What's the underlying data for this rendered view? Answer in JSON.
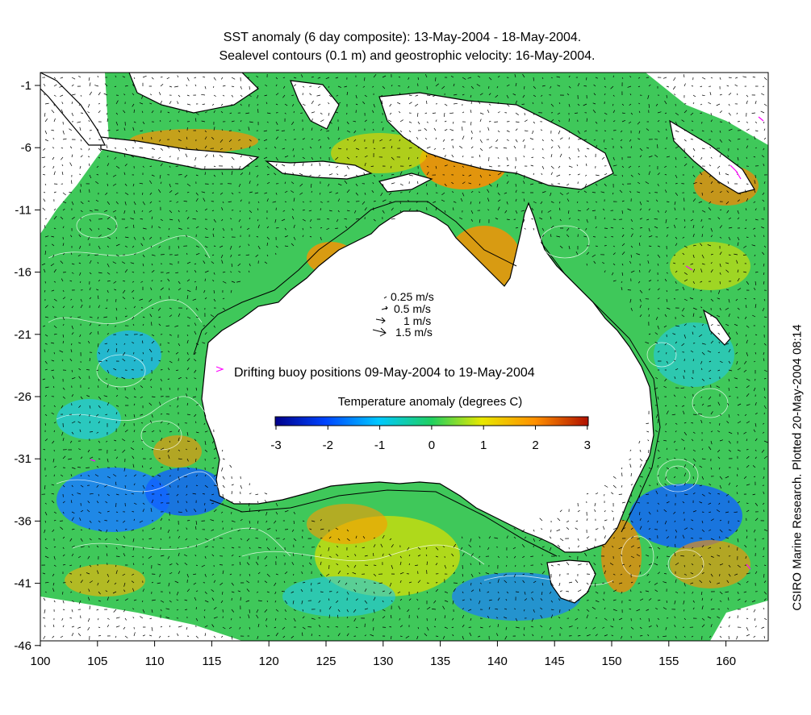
{
  "title_line1": "SST anomaly (6 day composite): 13-May-2004 - 18-May-2004.",
  "title_line2": "Sealevel contours (0.1 m) and geostrophic velocity: 16-May-2004.",
  "side_label": "CSIRO Marine Research. Plotted 20-May-2004 08:14",
  "velocity_legend": [
    "0.25 m/s",
    "0.5 m/s",
    "1 m/s",
    "1.5 m/s"
  ],
  "buoy_legend": "Drifting buoy positions 09-May-2004 to 19-May-2004",
  "colorbar": {
    "title": "Temperature anomaly (degrees C)",
    "ticks": [
      "-3",
      "-2",
      "-1",
      "0",
      "1",
      "2",
      "3"
    ],
    "colors": [
      "#00008b",
      "#0044ff",
      "#00c8ff",
      "#20d060",
      "#e8e800",
      "#ff9000",
      "#b01000"
    ]
  },
  "axes": {
    "x_ticks": [
      "100",
      "105",
      "110",
      "115",
      "120",
      "125",
      "130",
      "135",
      "140",
      "145",
      "150",
      "155",
      "160"
    ],
    "y_ticks": [
      "-1",
      "-6",
      "-11",
      "-16",
      "-21",
      "-26",
      "-31",
      "-36",
      "-41",
      "-46"
    ]
  },
  "colors": {
    "ocean_base": "#3fc85a",
    "land": "#ffffff",
    "buoy": "#ff00ff"
  }
}
